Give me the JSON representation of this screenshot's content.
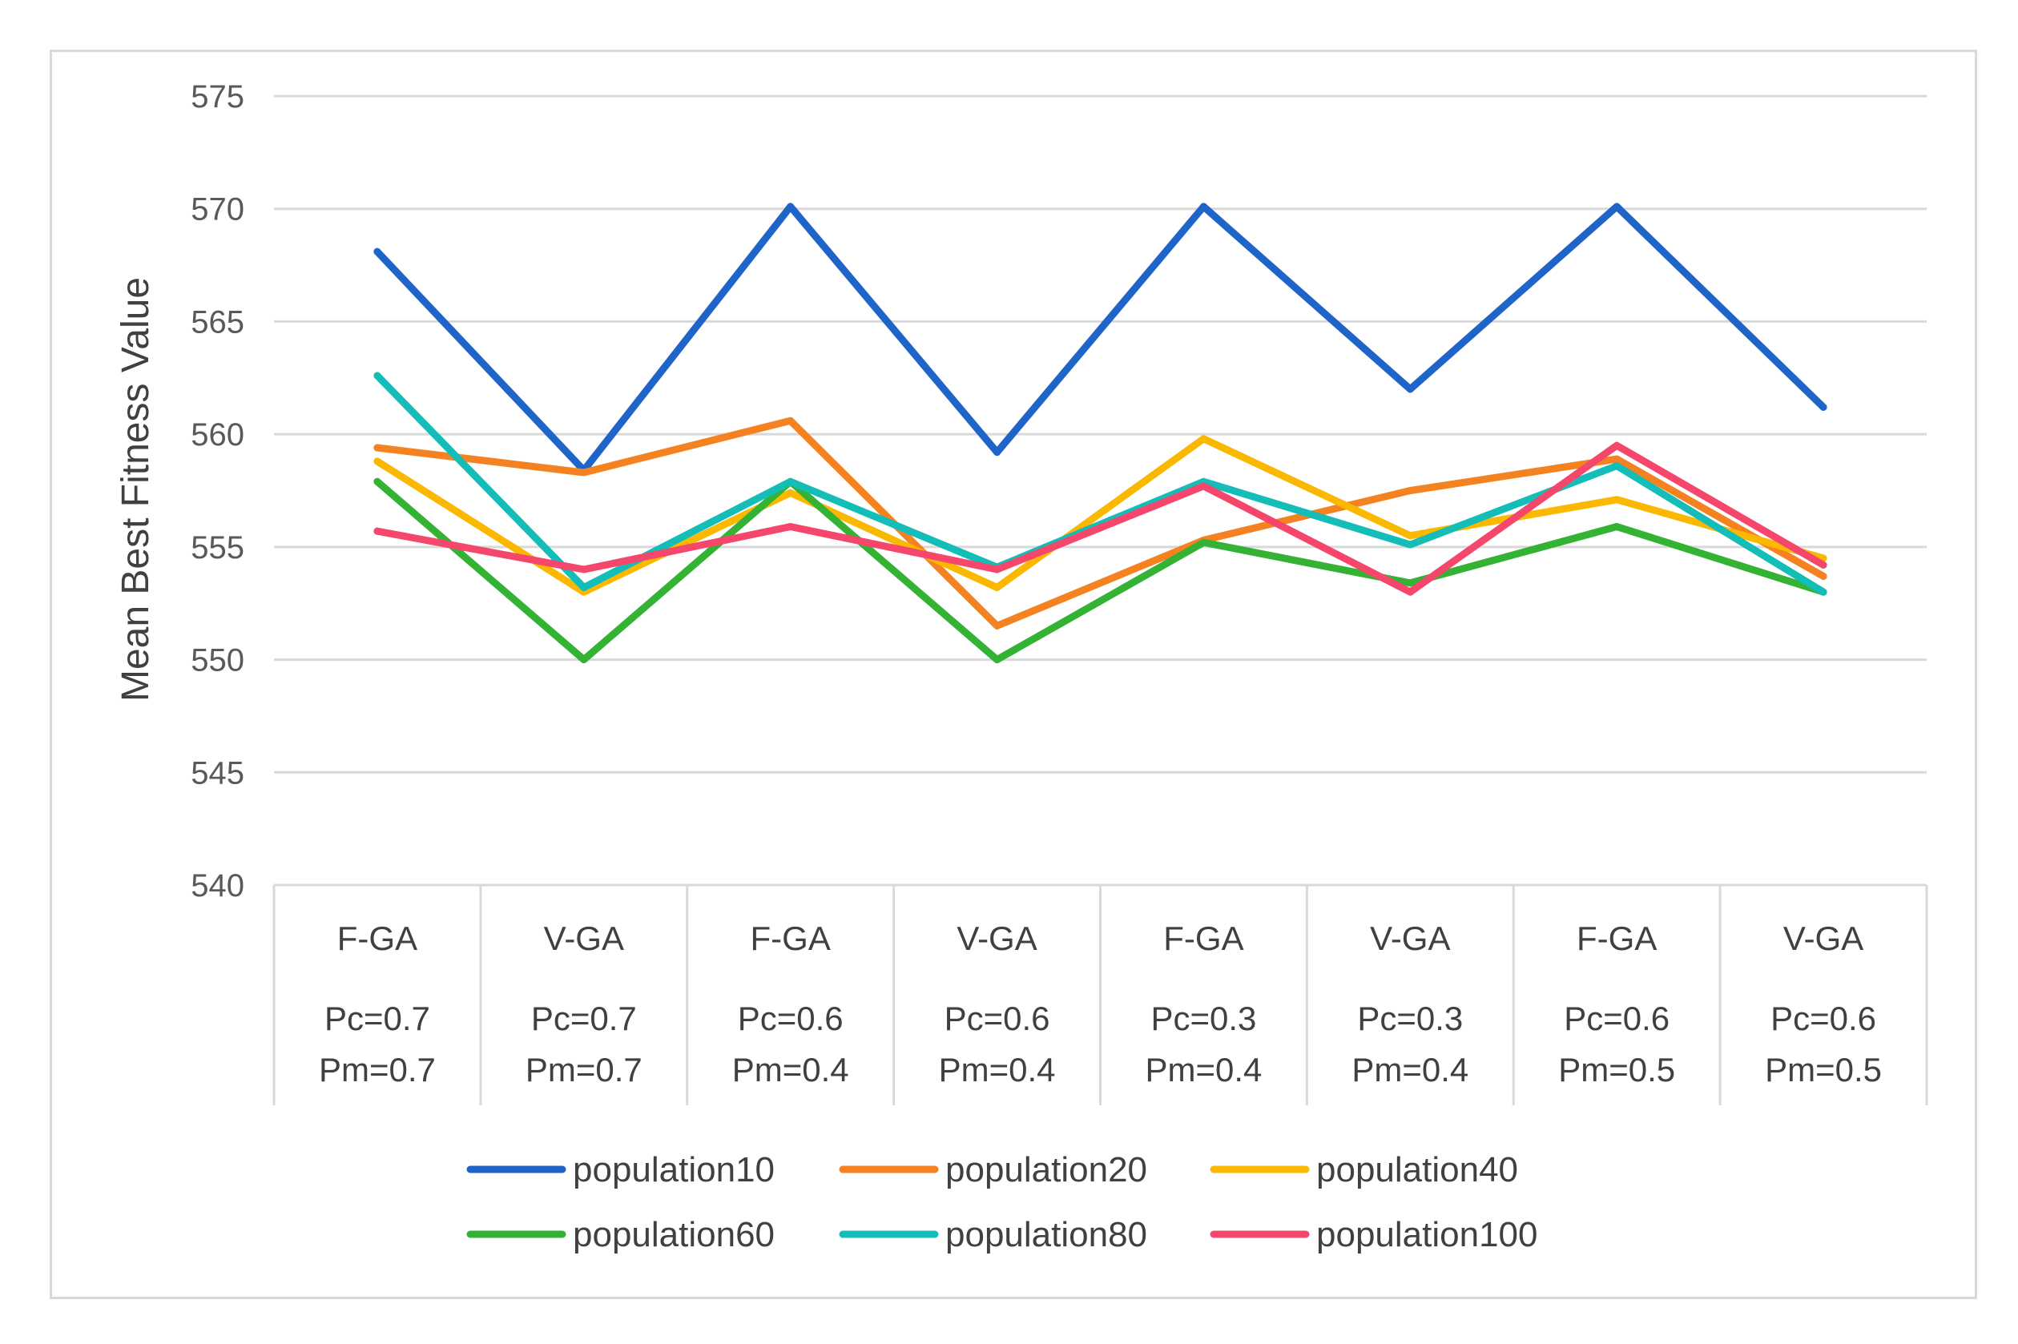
{
  "chart_data": {
    "type": "line",
    "title": "",
    "xlabel": "",
    "ylabel": "Mean Best Fitness Value",
    "ylim": [
      540,
      575
    ],
    "yticks": [
      540,
      545,
      550,
      555,
      560,
      565,
      570,
      575
    ],
    "grid": true,
    "legend_position": "bottom",
    "categories": [
      {
        "method": "F-GA",
        "pc": "Pc=0.7",
        "pm": "Pm=0.7"
      },
      {
        "method": "V-GA",
        "pc": "Pc=0.7",
        "pm": "Pm=0.7"
      },
      {
        "method": "F-GA",
        "pc": "Pc=0.6",
        "pm": "Pm=0.4"
      },
      {
        "method": "V-GA",
        "pc": "Pc=0.6",
        "pm": "Pm=0.4"
      },
      {
        "method": "F-GA",
        "pc": "Pc=0.3",
        "pm": "Pm=0.4"
      },
      {
        "method": "V-GA",
        "pc": "Pc=0.3",
        "pm": "Pm=0.4"
      },
      {
        "method": "F-GA",
        "pc": "Pc=0.6",
        "pm": "Pm=0.5"
      },
      {
        "method": "V-GA",
        "pc": "Pc=0.6",
        "pm": "Pm=0.5"
      }
    ],
    "series": [
      {
        "name": "population10",
        "color": "#1f64c8",
        "values": [
          568.1,
          558.4,
          570.1,
          559.2,
          570.1,
          562.0,
          570.1,
          561.2
        ]
      },
      {
        "name": "population20",
        "color": "#f58220",
        "values": [
          559.4,
          558.3,
          560.6,
          551.5,
          555.3,
          557.5,
          558.9,
          553.7
        ]
      },
      {
        "name": "population40",
        "color": "#fbb800",
        "values": [
          558.8,
          553.0,
          557.4,
          553.2,
          559.8,
          555.5,
          557.1,
          554.5
        ]
      },
      {
        "name": "population60",
        "color": "#33b233",
        "values": [
          557.9,
          550.0,
          557.9,
          550.0,
          555.2,
          553.4,
          555.9,
          553.0
        ]
      },
      {
        "name": "population80",
        "color": "#14bdb8",
        "values": [
          562.6,
          553.2,
          557.9,
          554.1,
          557.9,
          555.1,
          558.6,
          553.0
        ]
      },
      {
        "name": "population100",
        "color": "#f4476b",
        "values": [
          555.7,
          554.0,
          555.9,
          554.0,
          557.7,
          553.0,
          559.5,
          554.2
        ]
      }
    ]
  }
}
